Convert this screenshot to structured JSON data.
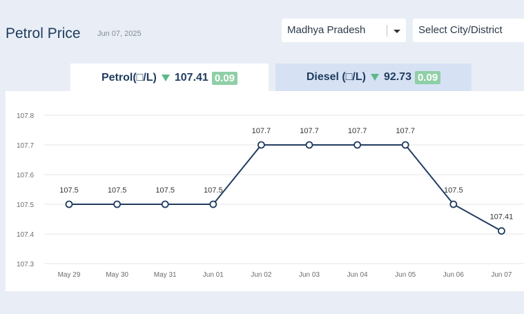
{
  "header": {
    "title": "Petrol Price",
    "date": "Jun 07, 2025",
    "state_select": "Madhya Pradesh",
    "city_select": "Select City/District"
  },
  "tabs": {
    "petrol": {
      "label": "Petrol(□/L)",
      "price": "107.41",
      "change": "0.09"
    },
    "diesel": {
      "label": "Diesel (□/L)",
      "price": "92.73",
      "change": "0.09"
    }
  },
  "colors": {
    "line": "#1f3b5e",
    "down_arrow": "#5cb98a",
    "badge": "#8fcfa7",
    "grid": "#e6e6e6"
  },
  "chart_data": {
    "type": "line",
    "categories": [
      "May 29",
      "May 30",
      "May 31",
      "Jun 01",
      "Jun 02",
      "Jun 03",
      "Jun 04",
      "Jun 05",
      "Jun 06",
      "Jun 07"
    ],
    "values": [
      107.5,
      107.5,
      107.5,
      107.5,
      107.7,
      107.7,
      107.7,
      107.7,
      107.5,
      107.41
    ],
    "data_labels": [
      "107.5",
      "107.5",
      "107.5",
      "107.5",
      "107.7",
      "107.7",
      "107.7",
      "107.7",
      "107.5",
      "107.41"
    ],
    "y_ticks": [
      "107.8",
      "107.7",
      "107.6",
      "107.5",
      "107.4",
      "107.3"
    ],
    "ylim": [
      107.3,
      107.8
    ],
    "grid": true
  }
}
